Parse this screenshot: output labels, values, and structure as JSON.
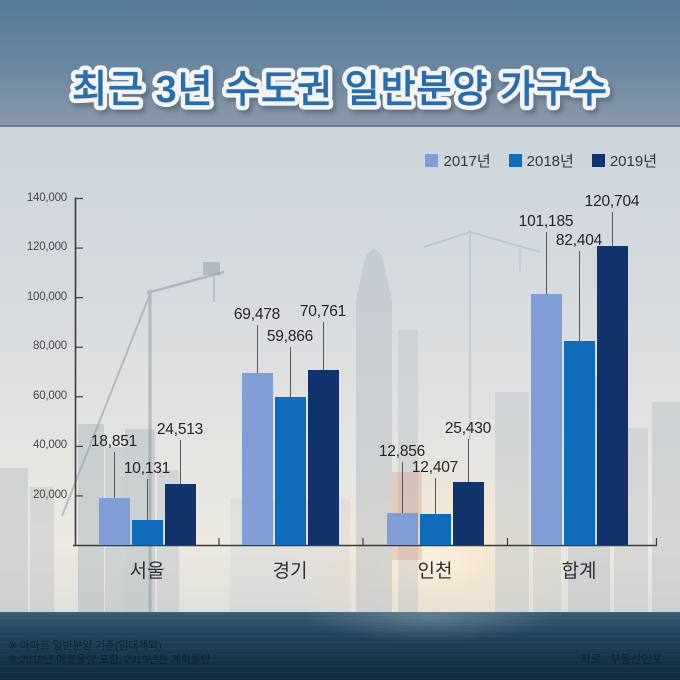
{
  "header": {
    "title": "최근 3년 수도권 일반분양 가구수"
  },
  "chart_data": {
    "type": "bar",
    "title": "최근 3년 수도권 일반분양 가구수",
    "categories": [
      "서울",
      "경기",
      "인천",
      "합계"
    ],
    "category_keys": [
      "seoul",
      "gyeonggi",
      "incheon",
      "total"
    ],
    "series": [
      {
        "name": "2017년",
        "key": "2017",
        "color": "#7f9ed6",
        "values": [
          18851,
          69478,
          12856,
          101185
        ],
        "labels": [
          "18,851",
          "69,478",
          "12,856",
          "101,185"
        ]
      },
      {
        "name": "2018년",
        "key": "2018",
        "color": "#0e6cba",
        "values": [
          10131,
          59866,
          12407,
          82404
        ],
        "labels": [
          "10,131",
          "59,866",
          "12,407",
          "82,404"
        ]
      },
      {
        "name": "2019년",
        "key": "2019",
        "color": "#10336b",
        "values": [
          24513,
          70761,
          25430,
          120704
        ],
        "labels": [
          "24,513",
          "70,761",
          "25,430",
          "120,704"
        ]
      }
    ],
    "ylim": [
      0,
      140000
    ],
    "ytick_interval": 20000,
    "ytick_labels": [
      "20,000",
      "40,000",
      "60,000",
      "80,000",
      "100,000",
      "120,000",
      "140,000"
    ],
    "legend_position": "top-right",
    "grid": false
  },
  "footer": {
    "note1": "※ 아파트 일반분양 기준(임대제외)",
    "note2": "※ 2018년 예정물량 포함, 2019년은 계획물량",
    "source": "자료 : 부동산인포"
  },
  "colors": {
    "title_fill": "#2b6da8",
    "axis": "#3a3c40",
    "value_label": "#222428",
    "water": "#173549",
    "header_band": "#6c87a0"
  }
}
